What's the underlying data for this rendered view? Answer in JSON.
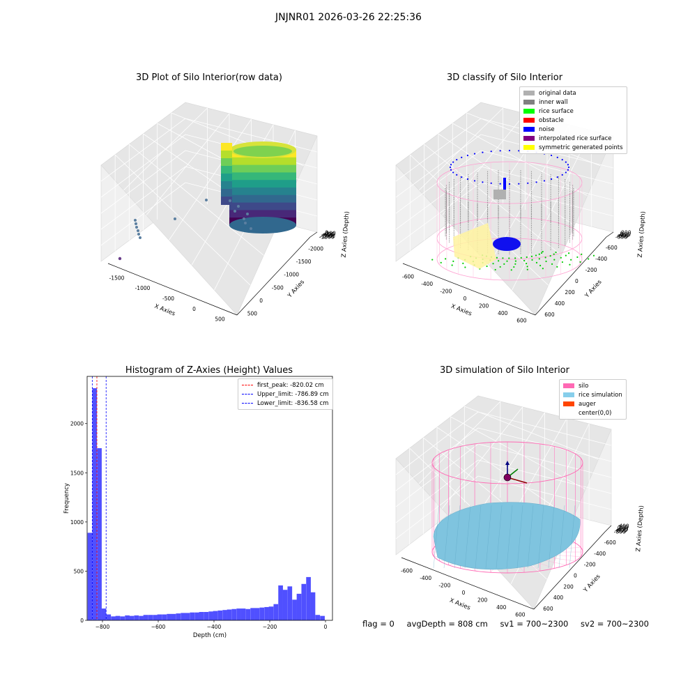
{
  "suptitle": "JNJNR01 2026-03-26 22:25:36",
  "footer": {
    "flag": "flag = 0",
    "avg_depth": "avgDepth = 808 cm",
    "sv1": "sv1 = 700~2300",
    "sv2": "sv2 = 700~2300"
  },
  "chart_data": [
    {
      "type": "scatter",
      "projection": "3d",
      "title": "3D Plot of Silo Interior(row data)",
      "xlabel": "X Axies",
      "ylabel": "Y Axies",
      "zlabel": "Z Axies (Depth)",
      "xticks": [
        -1500,
        -1000,
        -500,
        0,
        500
      ],
      "yticks": [
        500,
        0,
        -500,
        -1000,
        -1500,
        -2000
      ],
      "zticks": [
        0,
        -200,
        -400,
        -600,
        -800,
        -1000,
        -1200
      ],
      "colormap": "viridis"
    },
    {
      "type": "scatter",
      "projection": "3d",
      "title": "3D classify of Silo Interior",
      "xlabel": "X Axies",
      "ylabel": "Y Axies",
      "zlabel": "Z Axies (Depth)",
      "xticks": [
        -600,
        -400,
        -200,
        0,
        200,
        400,
        600
      ],
      "yticks": [
        600,
        400,
        200,
        0,
        -200,
        -400,
        -600
      ],
      "zticks": [
        200,
        0,
        -200,
        -400,
        -600,
        -800
      ],
      "legend": [
        {
          "label": "original data",
          "color": "#b0b0b0"
        },
        {
          "label": "inner wall",
          "color": "#808080"
        },
        {
          "label": "rice surface",
          "color": "#00ff00"
        },
        {
          "label": "obstacle",
          "color": "#ff0000"
        },
        {
          "label": "noise",
          "color": "#0000ff"
        },
        {
          "label": "interpolated rice surface",
          "color": "#800080"
        },
        {
          "label": "symmetric generated points",
          "color": "#ffff00"
        }
      ]
    },
    {
      "type": "bar",
      "title": "Histogram of Z-Axies (Height) Values",
      "xlabel": "Depth (cm)",
      "ylabel": "Frequency",
      "xlim": [
        -855,
        25
      ],
      "ylim": [
        0,
        2480
      ],
      "xticks": [
        -800,
        -600,
        -400,
        -200,
        0
      ],
      "yticks": [
        0,
        500,
        1000,
        1500,
        2000
      ],
      "bar_color": "#5050ff",
      "bin_width": 16.7,
      "bins": [
        {
          "x": -845,
          "count": 890
        },
        {
          "x": -828,
          "count": 2360
        },
        {
          "x": -811,
          "count": 1750
        },
        {
          "x": -795,
          "count": 120
        },
        {
          "x": -778,
          "count": 60
        },
        {
          "x": -761,
          "count": 40
        },
        {
          "x": -745,
          "count": 45
        },
        {
          "x": -728,
          "count": 40
        },
        {
          "x": -711,
          "count": 50
        },
        {
          "x": -695,
          "count": 45
        },
        {
          "x": -678,
          "count": 50
        },
        {
          "x": -661,
          "count": 45
        },
        {
          "x": -645,
          "count": 55
        },
        {
          "x": -628,
          "count": 55
        },
        {
          "x": -611,
          "count": 55
        },
        {
          "x": -595,
          "count": 60
        },
        {
          "x": -578,
          "count": 60
        },
        {
          "x": -561,
          "count": 65
        },
        {
          "x": -545,
          "count": 65
        },
        {
          "x": -528,
          "count": 70
        },
        {
          "x": -511,
          "count": 75
        },
        {
          "x": -495,
          "count": 75
        },
        {
          "x": -478,
          "count": 80
        },
        {
          "x": -461,
          "count": 80
        },
        {
          "x": -445,
          "count": 85
        },
        {
          "x": -428,
          "count": 85
        },
        {
          "x": -411,
          "count": 90
        },
        {
          "x": -395,
          "count": 95
        },
        {
          "x": -378,
          "count": 100
        },
        {
          "x": -361,
          "count": 105
        },
        {
          "x": -345,
          "count": 110
        },
        {
          "x": -328,
          "count": 115
        },
        {
          "x": -311,
          "count": 120
        },
        {
          "x": -295,
          "count": 120
        },
        {
          "x": -278,
          "count": 115
        },
        {
          "x": -261,
          "count": 125
        },
        {
          "x": -245,
          "count": 125
        },
        {
          "x": -228,
          "count": 130
        },
        {
          "x": -211,
          "count": 135
        },
        {
          "x": -195,
          "count": 140
        },
        {
          "x": -178,
          "count": 165
        },
        {
          "x": -161,
          "count": 355
        },
        {
          "x": -145,
          "count": 310
        },
        {
          "x": -128,
          "count": 345
        },
        {
          "x": -111,
          "count": 210
        },
        {
          "x": -95,
          "count": 270
        },
        {
          "x": -78,
          "count": 370
        },
        {
          "x": -61,
          "count": 440
        },
        {
          "x": -45,
          "count": 285
        },
        {
          "x": -28,
          "count": 55
        },
        {
          "x": -11,
          "count": 45
        }
      ],
      "lines": [
        {
          "label": "first_peak: -820.02 cm",
          "x": -820.02,
          "color": "#ff0000"
        },
        {
          "label": "Upper_limit: -786.89 cm",
          "x": -786.89,
          "color": "#0000ff"
        },
        {
          "label": "Lower_limit: -836.58 cm",
          "x": -836.58,
          "color": "#0000ff"
        }
      ]
    },
    {
      "type": "scatter",
      "projection": "3d",
      "title": "3D simulation of Silo Interior",
      "xlabel": "X Axies",
      "ylabel": "Y Axies",
      "zlabel": "Z Axies (Depth)",
      "xticks": [
        -600,
        -400,
        -200,
        0,
        200,
        400,
        600
      ],
      "yticks": [
        600,
        400,
        200,
        0,
        -200,
        -400,
        -600
      ],
      "zticks": [
        400,
        200,
        0,
        -200,
        -400,
        -600,
        -800
      ],
      "legend": [
        {
          "label": "silo",
          "color": "#ff69b4"
        },
        {
          "label": "rice simulation",
          "color": "#87ceeb"
        },
        {
          "label": "auger",
          "color": "#ff4500"
        },
        {
          "label": "center(0,0)",
          "color": ""
        }
      ]
    }
  ]
}
